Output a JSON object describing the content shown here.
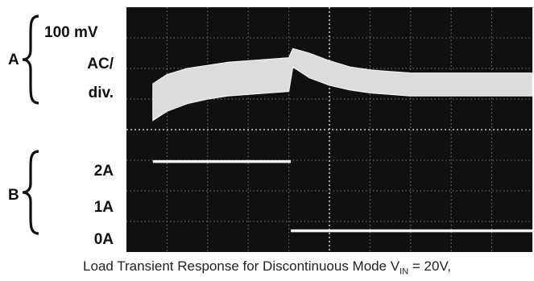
{
  "labels": {
    "channel_a": "A",
    "channel_b": "B",
    "a_scale_line1": "100 mV",
    "a_scale_line2": "AC/",
    "a_scale_line3": "div.",
    "b_level_2a": "2A",
    "b_level_1a": "1A",
    "b_level_0a": "0A"
  },
  "caption": {
    "prefix": "Load Transient Response for Discontinuous Mode V",
    "subscript": "IN",
    "suffix": " = 20V,"
  },
  "colors": {
    "screen": "#101010",
    "grid": "#7a7a7a",
    "trace": "#f2f2f2",
    "trace_band": "#dcdcdc"
  },
  "chart_data": {
    "type": "line",
    "grid": true,
    "divisions": {
      "x": 10,
      "y": 8
    },
    "series": [
      {
        "channel": "A",
        "unit": "div",
        "x": [
          0.65,
          1.0,
          1.5,
          2.0,
          2.5,
          3.0,
          3.5,
          4.0,
          4.1,
          4.5,
          5.0,
          5.5,
          6.0,
          6.5,
          7.0,
          8.0,
          9.0,
          10.0
        ],
        "y_upper": [
          5.5,
          5.8,
          6.0,
          6.1,
          6.2,
          6.25,
          6.3,
          6.35,
          6.65,
          6.5,
          6.25,
          6.05,
          5.95,
          5.9,
          5.85,
          5.85,
          5.85,
          5.85
        ],
        "y_lower": [
          4.3,
          4.6,
          4.85,
          5.0,
          5.1,
          5.15,
          5.2,
          5.25,
          6.05,
          5.7,
          5.45,
          5.3,
          5.2,
          5.15,
          5.1,
          5.1,
          5.1,
          5.1
        ]
      },
      {
        "channel": "B",
        "unit": "A",
        "x": [
          0.65,
          4.05,
          4.05,
          10.0
        ],
        "y": [
          1.9,
          1.9,
          0.05,
          0.05
        ]
      }
    ]
  }
}
